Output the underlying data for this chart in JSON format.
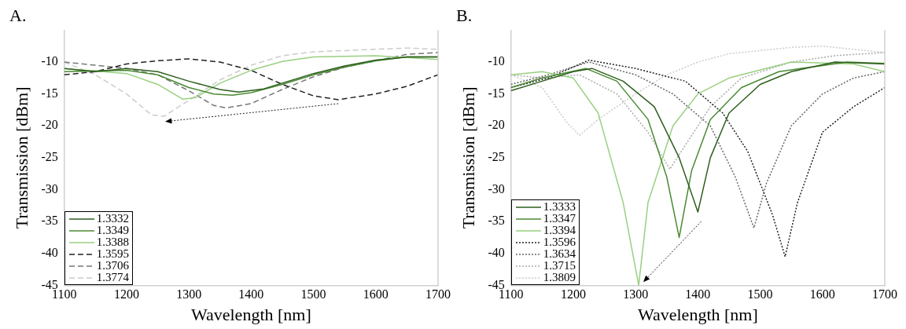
{
  "chart_data": [
    {
      "type": "line",
      "title": "A.",
      "xlabel": "Wavelength [nm]",
      "ylabel": "Transmission [dBm]",
      "xlim": [
        1100,
        1700
      ],
      "xticks": [
        1100,
        1200,
        1300,
        1400,
        1500,
        1600,
        1700
      ],
      "ylim": [
        -45,
        -5
      ],
      "yticks": [
        -45,
        -40,
        -35,
        -30,
        -25,
        -20,
        -15,
        -10
      ],
      "grid": false,
      "legend": "bottom left",
      "marker": "none",
      "series": [
        {
          "name": "1.3332",
          "color": "#2e5e1e",
          "line_style": "solid",
          "x": [
            1100,
            1150,
            1200,
            1250,
            1300,
            1350,
            1380,
            1420,
            1460,
            1500,
            1550,
            1600,
            1650,
            1700
          ],
          "values": [
            -11,
            -11.5,
            -11,
            -11.5,
            -13,
            -14.3,
            -14.7,
            -14.2,
            -13,
            -11.8,
            -10.6,
            -9.7,
            -9.2,
            -9.2
          ]
        },
        {
          "name": "1.3349",
          "color": "#4a8a32",
          "line_style": "solid",
          "x": [
            1100,
            1200,
            1250,
            1300,
            1340,
            1370,
            1400,
            1450,
            1500,
            1550,
            1600,
            1650,
            1700
          ],
          "values": [
            -11.5,
            -11.3,
            -12,
            -14,
            -15,
            -15.2,
            -14.8,
            -13.5,
            -12,
            -10.8,
            -9.8,
            -9.2,
            -9.2
          ]
        },
        {
          "name": "1.3388",
          "color": "#98d080",
          "line_style": "solid",
          "x": [
            1100,
            1200,
            1250,
            1290,
            1310,
            1350,
            1400,
            1450,
            1500,
            1600,
            1650,
            1700
          ],
          "values": [
            -11,
            -11.8,
            -13.5,
            -15.8,
            -15.6,
            -13.3,
            -11.3,
            -9.9,
            -9.2,
            -9,
            -9.3,
            -9.6
          ]
        },
        {
          "name": "1.3595",
          "color": "#222222",
          "line_style": "dashed",
          "x": [
            1100,
            1150,
            1200,
            1250,
            1300,
            1350,
            1400,
            1450,
            1500,
            1540,
            1600,
            1650,
            1700
          ],
          "values": [
            -12,
            -11.5,
            -10.3,
            -9.8,
            -9.5,
            -10,
            -11.3,
            -13.5,
            -15.3,
            -15.9,
            -15,
            -13.8,
            -12
          ]
        },
        {
          "name": "1.3706",
          "color": "#777777",
          "line_style": "dashed",
          "x": [
            1100,
            1200,
            1250,
            1300,
            1340,
            1360,
            1400,
            1450,
            1500,
            1550,
            1600,
            1650,
            1700
          ],
          "values": [
            -10,
            -11,
            -12,
            -14.5,
            -16.8,
            -17.2,
            -16.5,
            -14.3,
            -12.3,
            -10.8,
            -9.8,
            -8.8,
            -8.5
          ]
        },
        {
          "name": "1.3774",
          "color": "#cccccc",
          "line_style": "dashed",
          "x": [
            1100,
            1150,
            1200,
            1240,
            1260,
            1300,
            1350,
            1400,
            1450,
            1500,
            1600,
            1650,
            1700
          ],
          "values": [
            -10,
            -12,
            -15,
            -18.3,
            -18.5,
            -16,
            -12.8,
            -10.5,
            -9,
            -8.4,
            -8,
            -7.8,
            -8
          ]
        }
      ]
    },
    {
      "type": "line",
      "title": "B.",
      "xlabel": "Wavelength [nm]",
      "ylabel": "Transmission [dBm]",
      "xlim": [
        1100,
        1700
      ],
      "xticks": [
        1100,
        1200,
        1300,
        1400,
        1500,
        1600,
        1700
      ],
      "ylim": [
        -45,
        -5
      ],
      "yticks": [
        -45,
        -40,
        -35,
        -30,
        -25,
        -20,
        -15,
        -10
      ],
      "grid": false,
      "legend": "bottom left",
      "marker": "none",
      "series": [
        {
          "name": "1.3333",
          "color": "#2e5e1e",
          "line_style": "solid",
          "x": [
            1100,
            1150,
            1200,
            1230,
            1280,
            1330,
            1370,
            1400,
            1420,
            1450,
            1500,
            1550,
            1620,
            1700
          ],
          "values": [
            -14.5,
            -13,
            -11.5,
            -11,
            -13,
            -17,
            -25,
            -33.5,
            -25,
            -18,
            -13.5,
            -11.5,
            -10,
            -10.3
          ]
        },
        {
          "name": "1.3347",
          "color": "#4a8a32",
          "line_style": "solid",
          "x": [
            1100,
            1150,
            1220,
            1270,
            1320,
            1350,
            1370,
            1390,
            1420,
            1470,
            1530,
            1640,
            1700
          ],
          "values": [
            -14,
            -12.5,
            -11,
            -13,
            -19,
            -28,
            -37.5,
            -27,
            -19,
            -14,
            -11.5,
            -10,
            -10.2
          ]
        },
        {
          "name": "1.3394",
          "color": "#98d080",
          "line_style": "solid",
          "x": [
            1100,
            1150,
            1200,
            1240,
            1280,
            1305,
            1320,
            1360,
            1400,
            1450,
            1550,
            1650,
            1700
          ],
          "values": [
            -12,
            -11.5,
            -12.5,
            -18,
            -32,
            -45,
            -32,
            -20,
            -15,
            -12.5,
            -10,
            -10.3,
            -11.5
          ]
        },
        {
          "name": "1.3596",
          "color": "#222222",
          "line_style": "dotted",
          "x": [
            1100,
            1160,
            1225,
            1300,
            1380,
            1440,
            1480,
            1520,
            1540,
            1560,
            1600,
            1650,
            1700
          ],
          "values": [
            -14,
            -12.5,
            -9.7,
            -11,
            -13,
            -18,
            -24,
            -34,
            -40.5,
            -32,
            -21,
            -17,
            -14
          ]
        },
        {
          "name": "1.3634",
          "color": "#666666",
          "line_style": "dotted",
          "x": [
            1100,
            1160,
            1225,
            1300,
            1360,
            1420,
            1460,
            1490,
            1510,
            1550,
            1600,
            1650,
            1700
          ],
          "values": [
            -13.5,
            -12,
            -10,
            -12,
            -15,
            -20,
            -28,
            -36,
            -29,
            -20,
            -15,
            -12.5,
            -11.5
          ]
        },
        {
          "name": "1.3715",
          "color": "#aaaaaa",
          "line_style": "dotted",
          "x": [
            1100,
            1150,
            1210,
            1270,
            1320,
            1355,
            1380,
            1420,
            1470,
            1550,
            1620,
            1700
          ],
          "values": [
            -12,
            -12.5,
            -12,
            -15,
            -21,
            -26.8,
            -23,
            -17,
            -12.5,
            -10,
            -9,
            -8.5
          ]
        },
        {
          "name": "1.3809",
          "color": "#cccccc",
          "line_style": "dotted",
          "x": [
            1100,
            1150,
            1190,
            1210,
            1240,
            1300,
            1350,
            1400,
            1450,
            1550,
            1600,
            1650,
            1700
          ],
          "values": [
            -12,
            -14,
            -19.5,
            -21.5,
            -19,
            -15,
            -12,
            -10,
            -8.7,
            -7.7,
            -7.5,
            -8,
            -8.5
          ]
        }
      ]
    }
  ]
}
